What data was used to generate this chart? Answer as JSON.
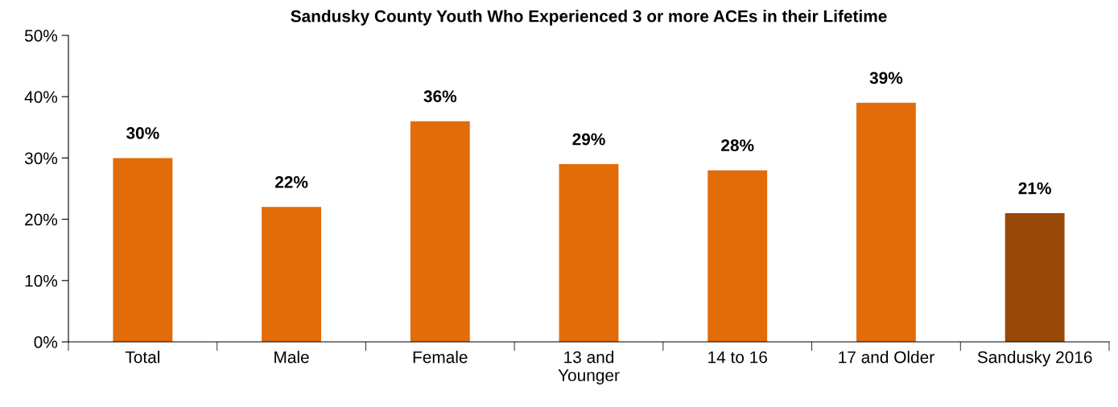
{
  "chart_data": {
    "type": "bar",
    "title": "Sandusky County Youth Who Experienced 3 or more ACEs in their Lifetime",
    "categories": [
      "Total",
      "Male",
      "Female",
      "13 and\nYounger",
      "14 to 16",
      "17 and Older",
      "Sandusky 2016"
    ],
    "values": [
      30,
      22,
      36,
      29,
      28,
      39,
      21
    ],
    "colors": [
      "#e36c0a",
      "#e36c0a",
      "#e36c0a",
      "#e36c0a",
      "#e36c0a",
      "#e36c0a",
      "#984807"
    ],
    "value_labels": [
      "30%",
      "22%",
      "36%",
      "29%",
      "28%",
      "39%",
      "21%"
    ],
    "ylim": [
      0,
      50
    ],
    "yticks": [
      {
        "value": 0,
        "label": "0%"
      },
      {
        "value": 10,
        "label": "10%"
      },
      {
        "value": 20,
        "label": "20%"
      },
      {
        "value": 30,
        "label": "30%"
      },
      {
        "value": 40,
        "label": "40%"
      },
      {
        "value": 50,
        "label": "50%"
      }
    ],
    "grid": false,
    "legend": false
  }
}
